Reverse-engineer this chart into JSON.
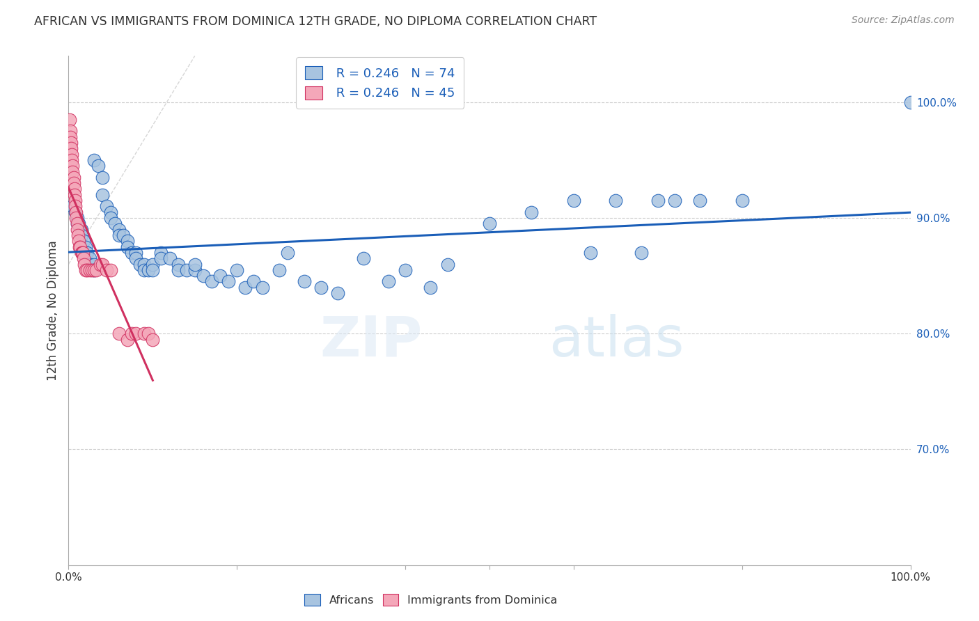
{
  "title": "AFRICAN VS IMMIGRANTS FROM DOMINICA 12TH GRADE, NO DIPLOMA CORRELATION CHART",
  "source": "Source: ZipAtlas.com",
  "ylabel": "12th Grade, No Diploma",
  "xlim": [
    0.0,
    1.0
  ],
  "ylim": [
    0.6,
    1.04
  ],
  "y_ticks_right": [
    0.7,
    0.8,
    0.9,
    1.0
  ],
  "y_tick_labels_right": [
    "70.0%",
    "80.0%",
    "90.0%",
    "100.0%"
  ],
  "blue_color": "#a8c4e0",
  "pink_color": "#f4a7b9",
  "blue_line_color": "#1a5eb8",
  "pink_line_color": "#d03060",
  "legend_blue_R": "R = 0.246",
  "legend_blue_N": "N = 74",
  "legend_pink_R": "R = 0.246",
  "legend_pink_N": "N = 45",
  "watermark_zip": "ZIP",
  "watermark_atlas": "atlas",
  "blue_scatter_x": [
    0.005,
    0.008,
    0.01,
    0.01,
    0.012,
    0.015,
    0.015,
    0.018,
    0.02,
    0.02,
    0.022,
    0.025,
    0.025,
    0.03,
    0.03,
    0.03,
    0.035,
    0.04,
    0.04,
    0.045,
    0.05,
    0.05,
    0.055,
    0.06,
    0.06,
    0.065,
    0.07,
    0.07,
    0.075,
    0.08,
    0.08,
    0.085,
    0.09,
    0.09,
    0.095,
    0.1,
    0.1,
    0.11,
    0.11,
    0.12,
    0.13,
    0.13,
    0.14,
    0.15,
    0.15,
    0.16,
    0.17,
    0.18,
    0.19,
    0.2,
    0.21,
    0.22,
    0.23,
    0.25,
    0.26,
    0.28,
    0.3,
    0.32,
    0.35,
    0.38,
    0.4,
    0.43,
    0.45,
    0.5,
    0.55,
    0.6,
    0.62,
    0.65,
    0.68,
    0.7,
    0.72,
    0.75,
    0.8,
    1.0
  ],
  "blue_scatter_y": [
    0.91,
    0.905,
    0.9,
    0.895,
    0.895,
    0.89,
    0.885,
    0.88,
    0.875,
    0.87,
    0.87,
    0.865,
    0.86,
    0.86,
    0.855,
    0.95,
    0.945,
    0.935,
    0.92,
    0.91,
    0.905,
    0.9,
    0.895,
    0.89,
    0.885,
    0.885,
    0.88,
    0.875,
    0.87,
    0.87,
    0.865,
    0.86,
    0.86,
    0.855,
    0.855,
    0.86,
    0.855,
    0.87,
    0.865,
    0.865,
    0.86,
    0.855,
    0.855,
    0.855,
    0.86,
    0.85,
    0.845,
    0.85,
    0.845,
    0.855,
    0.84,
    0.845,
    0.84,
    0.855,
    0.87,
    0.845,
    0.84,
    0.835,
    0.865,
    0.845,
    0.855,
    0.84,
    0.86,
    0.895,
    0.905,
    0.915,
    0.87,
    0.915,
    0.87,
    0.915,
    0.915,
    0.915,
    0.915,
    1.0
  ],
  "pink_scatter_x": [
    0.001,
    0.002,
    0.002,
    0.003,
    0.003,
    0.004,
    0.004,
    0.005,
    0.005,
    0.006,
    0.006,
    0.007,
    0.007,
    0.008,
    0.008,
    0.009,
    0.009,
    0.01,
    0.01,
    0.011,
    0.012,
    0.013,
    0.014,
    0.015,
    0.016,
    0.017,
    0.018,
    0.019,
    0.02,
    0.022,
    0.025,
    0.028,
    0.03,
    0.033,
    0.038,
    0.04,
    0.045,
    0.05,
    0.06,
    0.07,
    0.075,
    0.08,
    0.09,
    0.095,
    0.1
  ],
  "pink_scatter_y": [
    0.985,
    0.975,
    0.97,
    0.965,
    0.96,
    0.955,
    0.95,
    0.945,
    0.94,
    0.935,
    0.93,
    0.925,
    0.92,
    0.915,
    0.91,
    0.905,
    0.9,
    0.895,
    0.89,
    0.885,
    0.88,
    0.875,
    0.875,
    0.87,
    0.87,
    0.87,
    0.865,
    0.86,
    0.855,
    0.855,
    0.855,
    0.855,
    0.855,
    0.855,
    0.86,
    0.86,
    0.855,
    0.855,
    0.8,
    0.795,
    0.8,
    0.8,
    0.8,
    0.8,
    0.795
  ]
}
